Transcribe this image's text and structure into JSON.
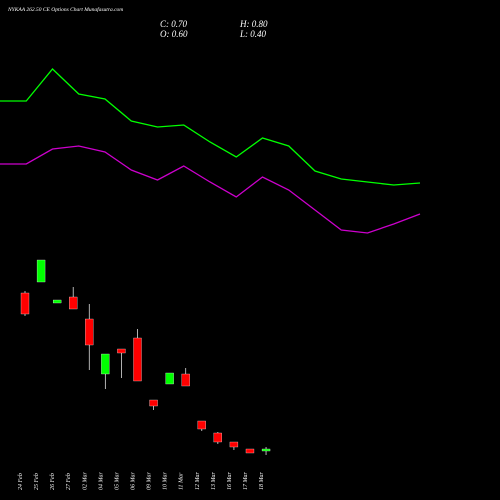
{
  "title": "NYKAA 262.50 CE Options Chart Munafasutra.com",
  "ohlc_labels": {
    "close": "C: 0.70",
    "high": "H: 0.80",
    "open": "O: 0.60",
    "low": "L: 0.40"
  },
  "chart_data": [
    {
      "type": "line",
      "ylim": [
        0,
        25
      ],
      "series": [
        {
          "color": "#00ff00",
          "values": [
            14.9,
            14.9,
            18.1,
            15.6,
            15.1,
            12.9,
            12.3,
            12.5,
            10.8,
            9.3,
            11.2,
            10.4,
            7.9,
            7.1,
            6.8,
            6.5,
            6.7
          ]
        },
        {
          "color": "#cc00cc",
          "values": [
            8.6,
            8.6,
            10.1,
            10.4,
            9.8,
            8.0,
            7.0,
            8.4,
            6.8,
            5.3,
            7.3,
            6.0,
            4.0,
            2.0,
            1.7,
            2.6,
            3.6
          ]
        }
      ]
    },
    {
      "type": "candlestick",
      "ylim": [
        0,
        11
      ],
      "up_color": "#00ff00",
      "down_color": "#ff0000",
      "categories": [
        "24 Feb",
        "25 Feb",
        "26 Feb",
        "27 Feb",
        "02 Mar",
        "04 Mar",
        "05 Mar",
        "06 Mar",
        "09 Mar",
        "10 Mar",
        "11 Mar",
        "12 Mar",
        "13 Mar",
        "16 Mar",
        "17 Mar",
        "18 Mar"
      ],
      "open": [
        8.5,
        9.05,
        8.0,
        8.3,
        7.2,
        4.45,
        5.7,
        6.25,
        3.15,
        3.95,
        4.45,
        2.1,
        1.5,
        1.05,
        0.7,
        0.6
      ],
      "high": [
        8.6,
        10.15,
        8.15,
        8.8,
        7.95,
        5.45,
        5.7,
        6.7,
        3.15,
        4.5,
        4.75,
        2.1,
        1.55,
        1.05,
        0.7,
        0.8
      ],
      "low": [
        7.35,
        9.05,
        8.0,
        7.7,
        4.65,
        3.7,
        4.25,
        4.1,
        2.65,
        3.95,
        3.85,
        1.6,
        0.95,
        0.65,
        0.5,
        0.4
      ],
      "close": [
        7.45,
        10.15,
        8.15,
        7.7,
        5.9,
        5.45,
        5.5,
        4.1,
        2.85,
        4.5,
        3.85,
        1.7,
        1.05,
        0.8,
        0.5,
        0.7
      ]
    }
  ]
}
